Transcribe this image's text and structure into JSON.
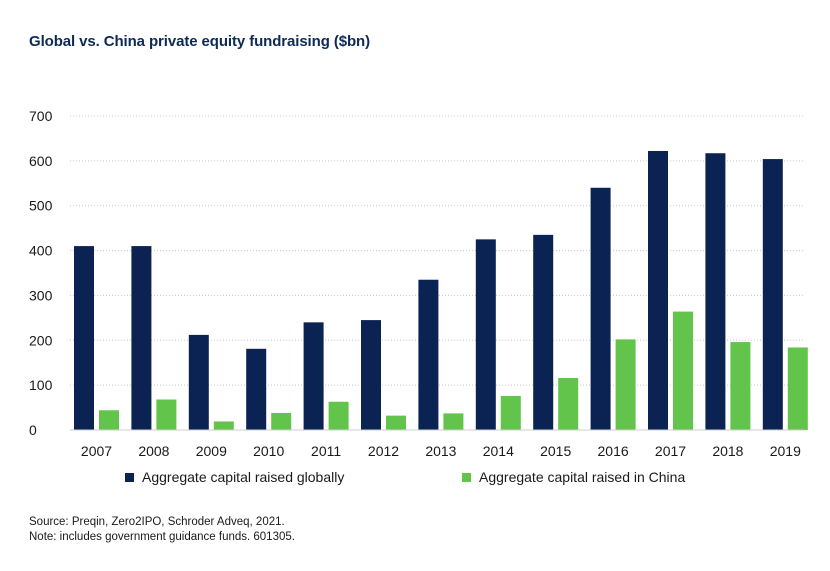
{
  "chart_data": {
    "type": "bar",
    "title": "Global vs. China private equity fundraising ($bn)",
    "categories": [
      "2007",
      "2008",
      "2009",
      "2010",
      "2011",
      "2012",
      "2013",
      "2014",
      "2015",
      "2016",
      "2017",
      "2018",
      "2019"
    ],
    "series": [
      {
        "name": "Aggregate capital raised globally",
        "color": "#0b2353",
        "values": [
          410,
          410,
          212,
          181,
          240,
          245,
          335,
          425,
          435,
          540,
          622,
          617,
          604
        ]
      },
      {
        "name": "Aggregate capital raised in China",
        "color": "#62c44a",
        "values": [
          44,
          68,
          19,
          38,
          63,
          32,
          37,
          76,
          116,
          202,
          264,
          196,
          184
        ]
      }
    ],
    "yticks": [
      "0",
      "100",
      "200",
      "300",
      "400",
      "500",
      "600",
      "700"
    ],
    "ylim": [
      0,
      700
    ],
    "grid": "horizontal-dotted",
    "legend": "bottom"
  },
  "notes": {
    "source": "Source: Preqin, Zero2IPO, Schroder Adveq, 2021.",
    "note": "Note: includes government guidance funds. 601305."
  }
}
